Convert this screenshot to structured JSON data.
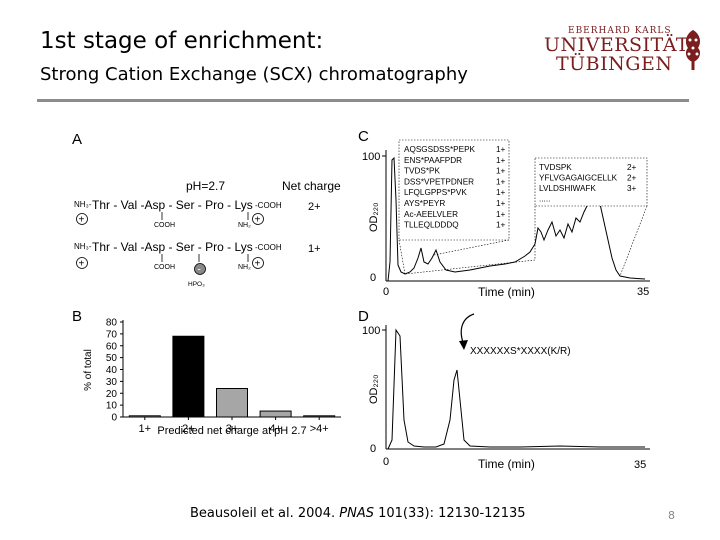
{
  "slide": {
    "title": "1st stage of enrichment:",
    "subtitle": "Strong Cation Exchange (SCX) chromatography",
    "logo": {
      "top": "EBERHARD KARLS",
      "line1": "UNIVERSITÄT",
      "line2": "TÜBINGEN"
    },
    "citation": {
      "authors": "Beausoleil et al. 2004.",
      "journal": "PNAS",
      "ref": "101(33): 12130-12135"
    },
    "page_number": "8"
  },
  "panelA": {
    "label": "A",
    "ph": "pH=2.7",
    "net_charge_label": "Net charge",
    "row1": {
      "nh": "NH₃-",
      "seq": "Thr - Val -Asp - Ser - Pro - Lys",
      "coo": "-COOH",
      "cooh": "COOH",
      "nh2": "NH₂",
      "charge": "2+"
    },
    "row2": {
      "nh": "NH₃-",
      "seq": "Thr - Val -Asp - Ser - Pro - Lys",
      "coo": "-COOH",
      "cooh": "COOH",
      "nh2": "NH₂",
      "hpo": "HPO₃",
      "charge": "1+"
    },
    "plus": "+",
    "minus": "-"
  },
  "panelB": {
    "label": "B",
    "chart_data": {
      "type": "bar",
      "categories": [
        "1+",
        "2+",
        "3+",
        "4+",
        ">4+"
      ],
      "values": [
        1,
        68,
        24,
        5,
        1
      ],
      "colors": [
        "#ffffff",
        "#000000",
        "#a6a6a6",
        "#a6a6a6",
        "#a6a6a6"
      ],
      "ylabel": "% of total",
      "xlabel": "Predicted net charge at pH 2.7",
      "ylim": [
        0,
        80
      ],
      "yticks": [
        "0",
        "10",
        "20",
        "30",
        "40",
        "50",
        "60",
        "70",
        "80"
      ]
    }
  },
  "panelC": {
    "label": "C",
    "chart_data": {
      "type": "line",
      "ylabel": "OD₂₂₀",
      "xlabel": "Time (min)",
      "x_ticks": [
        "0",
        "35"
      ],
      "y_ticks": [
        "0",
        "100"
      ],
      "legend_left": [
        {
          "seq": "AQSGSDSS*PEPK",
          "charge": "1+"
        },
        {
          "seq": "ENS*PAAFPDR",
          "charge": "1+"
        },
        {
          "seq": "TVDS*PK",
          "charge": "1+"
        },
        {
          "seq": "DSS*VPETPDNER",
          "charge": "1+"
        },
        {
          "seq": "LFQLGPPS*PVK",
          "charge": "1+"
        },
        {
          "seq": "AYS*PEYR",
          "charge": "1+"
        },
        {
          "seq": "Ac-AEELVLER",
          "charge": "1+"
        },
        {
          "seq": "TLLEQLDDDQ",
          "charge": "1+"
        }
      ],
      "legend_right": [
        {
          "seq": "TVDSPK",
          "charge": "2+"
        },
        {
          "seq": "YFLVGAGAIGCELLK",
          "charge": "2+"
        },
        {
          "seq": "LVLDSHIWAFK",
          "charge": "3+"
        },
        {
          "seq": ".....",
          "charge": ""
        }
      ]
    }
  },
  "panelD": {
    "label": "D",
    "chart_data": {
      "type": "line",
      "ylabel": "OD₂₂₀",
      "xlabel": "Time (min)",
      "x_ticks": [
        "0",
        "35"
      ],
      "y_ticks": [
        "0",
        "100"
      ],
      "annotation": "XXXXXXS*XXXX(K/R)"
    }
  }
}
